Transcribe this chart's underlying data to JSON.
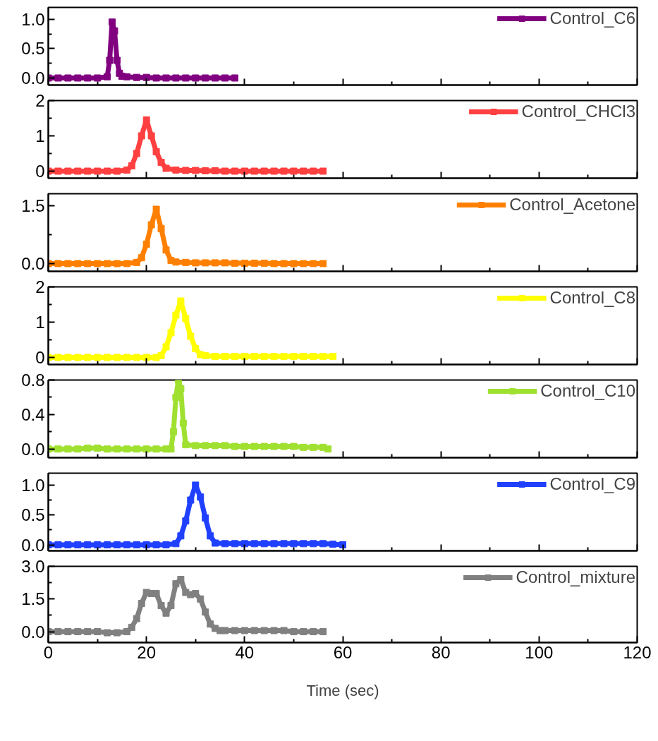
{
  "chart_data": [
    {
      "type": "line",
      "x": [
        0,
        2,
        4,
        6,
        8,
        10,
        12,
        12.5,
        13,
        13.5,
        14,
        14.5,
        15,
        16,
        18,
        20,
        22,
        24,
        26,
        28,
        30,
        32,
        34,
        36,
        38
      ],
      "series": [
        {
          "name": "Control_C6",
          "color": "#800080",
          "values": [
            0,
            0,
            0,
            0,
            0,
            0,
            0.02,
            0.3,
            0.95,
            0.8,
            0.3,
            0.08,
            0.03,
            0.02,
            0.01,
            0.01,
            0,
            0,
            0,
            0,
            0,
            0,
            0,
            0,
            0
          ]
        }
      ],
      "xlim": [
        0,
        120
      ],
      "xticks": [
        0,
        20,
        40,
        60,
        80,
        100,
        120
      ],
      "ylim": [
        -0.12,
        1.2
      ],
      "yticks": [
        {
          "value": 0,
          "label": "0.0"
        },
        {
          "value": 0.5,
          "label": "0.5"
        },
        {
          "value": 1,
          "label": "1.0"
        }
      ],
      "tick_labels": "y",
      "legend": "top right",
      "marker": "square",
      "line_style": "solid",
      "grid": false
    },
    {
      "type": "line",
      "x": [
        0,
        2,
        4,
        6,
        8,
        10,
        12,
        14,
        16,
        17,
        18,
        19,
        20,
        21,
        22,
        23,
        24,
        26,
        28,
        30,
        32,
        34,
        36,
        38,
        40,
        42,
        44,
        46,
        48,
        50,
        52,
        54,
        56
      ],
      "series": [
        {
          "name": "Control_CHCl3",
          "color": "#ff4040",
          "values": [
            0,
            0,
            0,
            0,
            0,
            0,
            0,
            0,
            0.03,
            0.15,
            0.5,
            1.0,
            1.45,
            1.0,
            0.55,
            0.25,
            0.08,
            0.03,
            0.02,
            0.02,
            0.01,
            0.01,
            0,
            0,
            0,
            0,
            0,
            0,
            0,
            0,
            0,
            0,
            0
          ]
        }
      ],
      "xlim": [
        0,
        120
      ],
      "xticks": [
        0,
        20,
        40,
        60,
        80,
        100,
        120
      ],
      "ylim": [
        -0.2,
        2
      ],
      "yticks": [
        0,
        1,
        2
      ],
      "tick_labels": "y",
      "legend": "top right",
      "marker": "square",
      "line_style": "solid",
      "grid": false
    },
    {
      "type": "line",
      "x": [
        0,
        2,
        4,
        6,
        8,
        10,
        12,
        14,
        16,
        18,
        19,
        20,
        21,
        22,
        23,
        24,
        25,
        26,
        28,
        30,
        32,
        34,
        36,
        38,
        40,
        42,
        44,
        46,
        48,
        50,
        52,
        54,
        56
      ],
      "series": [
        {
          "name": "Control_Acetone",
          "color": "#ff8000",
          "values": [
            0,
            0,
            0,
            0,
            0,
            0,
            0,
            0,
            0,
            0.03,
            0.15,
            0.5,
            1.0,
            1.4,
            0.9,
            0.35,
            0.08,
            0.04,
            0.03,
            0.02,
            0.02,
            0.02,
            0.02,
            0.01,
            0.01,
            0.01,
            0.01,
            0,
            0,
            0,
            0,
            0,
            0
          ]
        }
      ],
      "xlim": [
        0,
        120
      ],
      "xticks": [
        0,
        20,
        40,
        60,
        80,
        100,
        120
      ],
      "ylim": [
        -0.2,
        1.8
      ],
      "yticks": [
        {
          "value": 0,
          "label": "0.0"
        },
        {
          "value": 1.5,
          "label": "1.5"
        }
      ],
      "tick_labels": "y",
      "legend": "top right",
      "marker": "square",
      "line_style": "solid",
      "grid": false
    },
    {
      "type": "line",
      "x": [
        0,
        2,
        4,
        6,
        8,
        10,
        12,
        14,
        16,
        18,
        20,
        22,
        23,
        24,
        25,
        26,
        27,
        28,
        29,
        30,
        31,
        32,
        34,
        36,
        38,
        40,
        42,
        44,
        46,
        48,
        50,
        52,
        54,
        56,
        58
      ],
      "series": [
        {
          "name": "Control_C8",
          "color": "#ffff00",
          "values": [
            0,
            0,
            0,
            0,
            0,
            0,
            0,
            0,
            0,
            0,
            0,
            0,
            0.05,
            0.3,
            0.7,
            1.2,
            1.6,
            1.1,
            0.6,
            0.25,
            0.08,
            0.05,
            0.03,
            0.03,
            0.03,
            0.03,
            0.03,
            0.03,
            0.03,
            0.03,
            0.03,
            0.03,
            0.03,
            0.03,
            0.03
          ]
        }
      ],
      "xlim": [
        0,
        120
      ],
      "xticks": [
        0,
        20,
        40,
        60,
        80,
        100,
        120
      ],
      "ylim": [
        -0.2,
        2
      ],
      "yticks": [
        0,
        1,
        2
      ],
      "tick_labels": "y",
      "legend": "top right",
      "marker": "square",
      "line_style": "solid",
      "grid": false
    },
    {
      "type": "line",
      "x": [
        0,
        2,
        4,
        6,
        8,
        10,
        12,
        14,
        16,
        18,
        20,
        22,
        24,
        25,
        25.5,
        26,
        26.5,
        27,
        27.5,
        28,
        30,
        32,
        34,
        36,
        38,
        40,
        42,
        44,
        46,
        48,
        50,
        52,
        54,
        56,
        57
      ],
      "series": [
        {
          "name": "Control_C10",
          "color": "#a0e030",
          "values": [
            0,
            0,
            0,
            0,
            0.01,
            0.01,
            0,
            0,
            0,
            0,
            0,
            0,
            0,
            0,
            0.2,
            0.6,
            0.8,
            0.7,
            0.3,
            0.05,
            0.04,
            0.04,
            0.04,
            0.04,
            0.03,
            0.03,
            0.03,
            0.03,
            0.03,
            0.03,
            0.03,
            0.02,
            0.02,
            0.02,
            0
          ]
        }
      ],
      "xlim": [
        0,
        120
      ],
      "xticks": [
        0,
        20,
        40,
        60,
        80,
        100,
        120
      ],
      "ylim": [
        -0.1,
        0.8
      ],
      "yticks": [
        {
          "value": 0,
          "label": "0.0"
        },
        {
          "value": 0.4,
          "label": "0.4"
        },
        {
          "value": 0.8,
          "label": "0.8"
        }
      ],
      "tick_labels": "y",
      "legend": "top right",
      "marker": "square",
      "line_style": "solid",
      "grid": false
    },
    {
      "type": "line",
      "x": [
        0,
        2,
        4,
        6,
        8,
        10,
        12,
        14,
        16,
        18,
        20,
        22,
        24,
        26,
        27,
        28,
        29,
        30,
        31,
        32,
        33,
        34,
        36,
        38,
        40,
        42,
        44,
        46,
        48,
        50,
        52,
        54,
        56,
        58,
        60
      ],
      "series": [
        {
          "name": "Control_C9",
          "color": "#2040ff",
          "values": [
            0,
            0,
            0,
            0,
            0,
            0,
            0,
            0,
            0,
            0,
            0,
            0,
            0,
            0.02,
            0.15,
            0.4,
            0.75,
            1.0,
            0.8,
            0.45,
            0.15,
            0.03,
            0.02,
            0.02,
            0.02,
            0.02,
            0.02,
            0.02,
            0.02,
            0.02,
            0.02,
            0.02,
            0.02,
            0.01,
            0
          ]
        }
      ],
      "xlim": [
        0,
        120
      ],
      "xticks": [
        0,
        20,
        40,
        60,
        80,
        100,
        120
      ],
      "ylim": [
        -0.1,
        1.2
      ],
      "yticks": [
        {
          "value": 0,
          "label": "0.0"
        },
        {
          "value": 0.5,
          "label": "0.5"
        },
        {
          "value": 1,
          "label": "1.0"
        }
      ],
      "tick_labels": "y",
      "legend": "top right",
      "marker": "square",
      "line_style": "solid",
      "grid": false
    },
    {
      "type": "line",
      "xlabel": "Time (sec)",
      "x": [
        0,
        2,
        4,
        6,
        8,
        10,
        12,
        14,
        16,
        17,
        18,
        19,
        20,
        21,
        22,
        23,
        24,
        25,
        26,
        27,
        28,
        29,
        30,
        31,
        32,
        33,
        34,
        35,
        36,
        38,
        40,
        42,
        44,
        46,
        48,
        50,
        52,
        54,
        56
      ],
      "series": [
        {
          "name": "Control_mixture",
          "color": "#808080",
          "values": [
            0,
            0,
            0,
            0,
            0,
            0,
            -0.05,
            -0.05,
            0,
            0.2,
            0.6,
            1.3,
            1.8,
            1.75,
            1.75,
            1.2,
            0.85,
            1.2,
            2.2,
            2.4,
            1.8,
            1.7,
            1.75,
            1.5,
            0.9,
            0.35,
            0.15,
            0.05,
            0.05,
            0.05,
            0.05,
            0.05,
            0.05,
            0.05,
            0.05,
            0,
            0,
            0,
            0
          ]
        }
      ],
      "xlim": [
        0,
        120
      ],
      "xticks": [
        0,
        20,
        40,
        60,
        80,
        100,
        120
      ],
      "ylim": [
        -0.5,
        3
      ],
      "yticks": [
        {
          "value": 0,
          "label": "0.0"
        },
        {
          "value": 1.5,
          "label": "1.5"
        },
        {
          "value": 3,
          "label": "3.0"
        }
      ],
      "legend": "top right",
      "marker": "square",
      "line_style": "solid",
      "grid": false
    }
  ]
}
